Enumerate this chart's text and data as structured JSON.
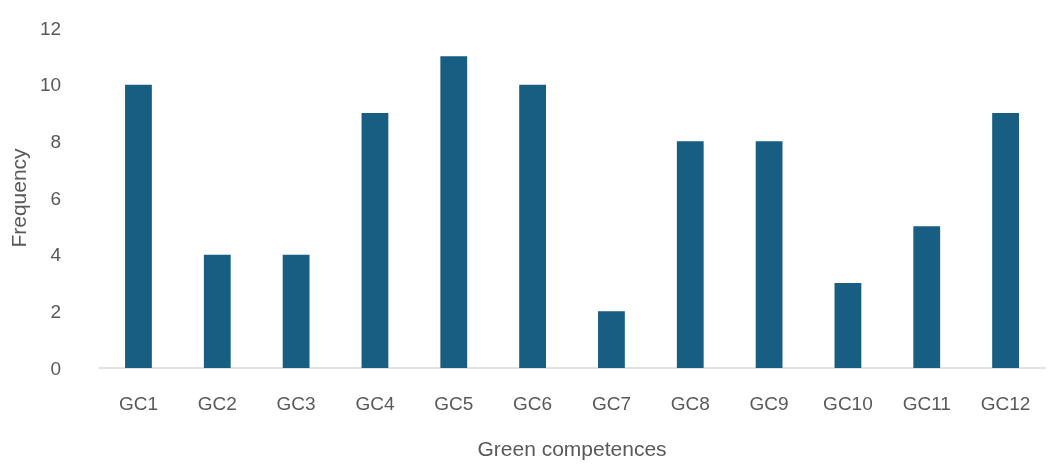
{
  "chart_data": {
    "type": "bar",
    "xlabel": "Green competences",
    "ylabel": "Frequency",
    "categories": [
      "GC1",
      "GC2",
      "GC3",
      "GC4",
      "GC5",
      "GC6",
      "GC7",
      "GC8",
      "GC9",
      "GC10",
      "GC11",
      "GC12"
    ],
    "values": [
      10,
      4,
      4,
      9,
      11,
      10,
      2,
      8,
      8,
      3,
      5,
      9
    ],
    "color": "#175e82",
    "ylim": [
      0,
      12
    ],
    "yticks": [
      0,
      2,
      4,
      6,
      8,
      10,
      12
    ],
    "grid": false
  }
}
